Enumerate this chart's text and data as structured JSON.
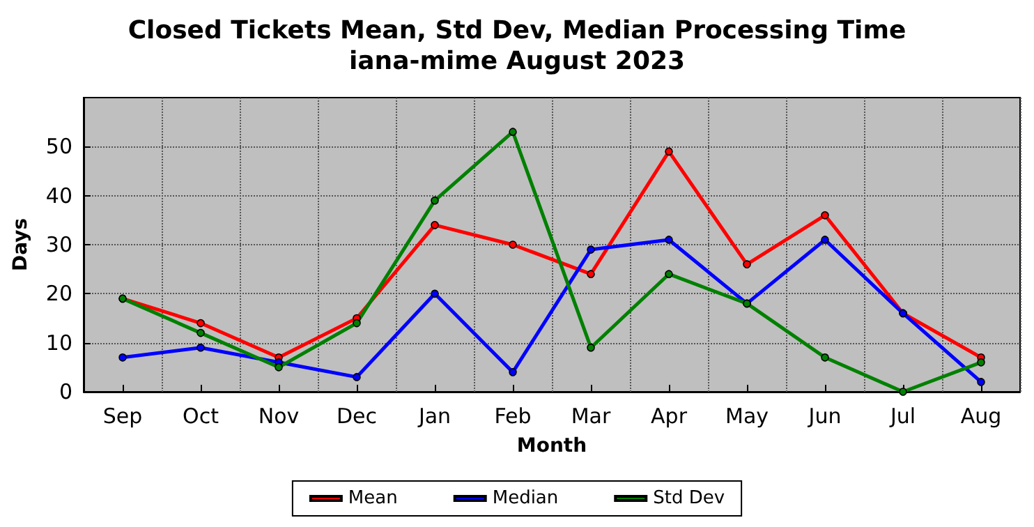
{
  "chart_data": {
    "type": "line",
    "title": "Closed Tickets Mean, Std Dev, Median Processing Time",
    "subtitle": "iana-mime August 2023",
    "xlabel": "Month",
    "ylabel": "Days",
    "categories": [
      "Sep",
      "Oct",
      "Nov",
      "Dec",
      "Jan",
      "Feb",
      "Mar",
      "Apr",
      "May",
      "Jun",
      "Jul",
      "Aug"
    ],
    "series": [
      {
        "name": "Mean",
        "color": "#ff0000",
        "values": [
          19,
          14,
          7,
          15,
          34,
          30,
          24,
          49,
          26,
          36,
          16,
          7
        ]
      },
      {
        "name": "Median",
        "color": "#0000ff",
        "values": [
          7,
          9,
          6,
          3,
          20,
          4,
          29,
          31,
          18,
          31,
          16,
          2
        ]
      },
      {
        "name": "Std Dev",
        "color": "#008000",
        "values": [
          19,
          12,
          5,
          14,
          39,
          53,
          9,
          24,
          18,
          7,
          0,
          6
        ]
      }
    ],
    "ylim": [
      0,
      60
    ],
    "yticks": [
      0,
      10,
      20,
      30,
      40,
      50
    ],
    "grid": true,
    "legend": "bottom",
    "marker": "circle",
    "line_style": "solid"
  }
}
